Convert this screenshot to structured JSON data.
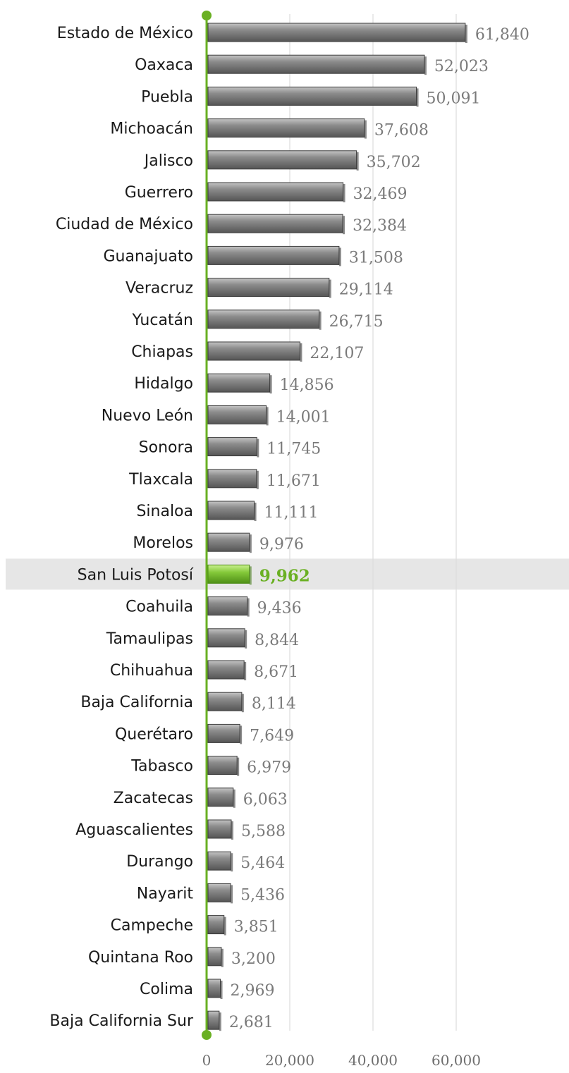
{
  "chart_data": {
    "type": "bar",
    "orientation": "horizontal",
    "categories": [
      "Estado de México",
      "Oaxaca",
      "Puebla",
      "Michoacán",
      "Jalisco",
      "Guerrero",
      "Ciudad de México",
      "Guanajuato",
      "Veracruz",
      "Yucatán",
      "Chiapas",
      "Hidalgo",
      "Nuevo León",
      "Sonora",
      "Tlaxcala",
      "Sinaloa",
      "Morelos",
      "San Luis Potosí",
      "Coahuila",
      "Tamaulipas",
      "Chihuahua",
      "Baja California",
      "Querétaro",
      "Tabasco",
      "Zacatecas",
      "Aguascalientes",
      "Durango",
      "Nayarit",
      "Campeche",
      "Quintana Roo",
      "Colima",
      "Baja California Sur"
    ],
    "values": [
      61840,
      52023,
      50091,
      37608,
      35702,
      32469,
      32384,
      31508,
      29114,
      26715,
      22107,
      14856,
      14001,
      11745,
      11671,
      11111,
      9976,
      9962,
      9436,
      8844,
      8671,
      8114,
      7649,
      6979,
      6063,
      5588,
      5464,
      5436,
      3851,
      3200,
      2969,
      2681
    ],
    "value_labels": [
      "61,840",
      "52,023",
      "50,091",
      "37,608",
      "35,702",
      "32,469",
      "32,384",
      "31,508",
      "29,114",
      "26,715",
      "22,107",
      "14,856",
      "14,001",
      "11,745",
      "11,671",
      "11,111",
      "9,976",
      "9,962",
      "9,436",
      "8,844",
      "8,671",
      "8,114",
      "7,649",
      "6,979",
      "6,063",
      "5,588",
      "5,464",
      "5,436",
      "3,851",
      "3,200",
      "2,969",
      "2,681"
    ],
    "highlight": "San Luis Potosí",
    "xlim": [
      0,
      80000
    ],
    "xticks": [
      0,
      20000,
      40000,
      60000
    ],
    "xtick_labels": [
      "0",
      "20,000",
      "40,000",
      "60,000"
    ],
    "grid": true,
    "legend": "none",
    "title": "",
    "xlabel": "",
    "ylabel": ""
  },
  "colors": {
    "bar": "#7a7a7a",
    "bar_highlight": "#7ec233",
    "axis": "#6ab023",
    "highlight_band": "#e6e6e6",
    "grid": "#dcdcdc",
    "value_text": "#7a7a7a",
    "value_text_highlight": "#6ab023"
  }
}
